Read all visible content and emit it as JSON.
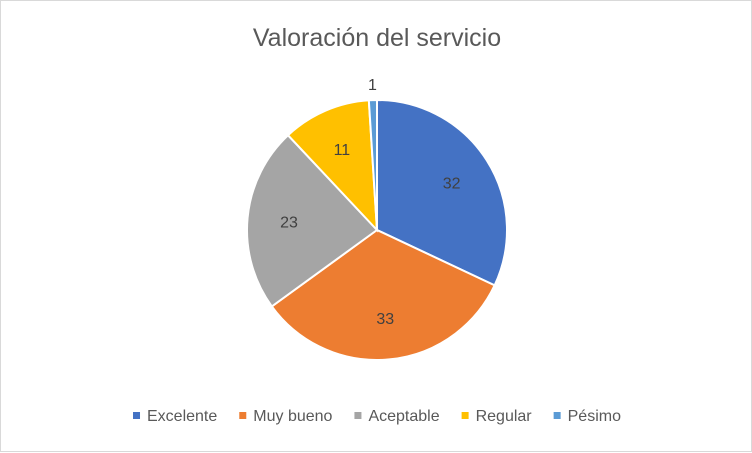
{
  "chart_data": {
    "type": "pie",
    "title": "Valoración del servicio",
    "categories": [
      "Excelente",
      "Muy bueno",
      "Aceptable",
      "Regular",
      "Pésimo"
    ],
    "values": [
      32,
      33,
      23,
      11,
      1
    ],
    "colors": [
      "#4472C4",
      "#ED7D31",
      "#A5A5A5",
      "#FFC000",
      "#5B9BD5"
    ],
    "legend_position": "bottom",
    "data_labels": true
  }
}
